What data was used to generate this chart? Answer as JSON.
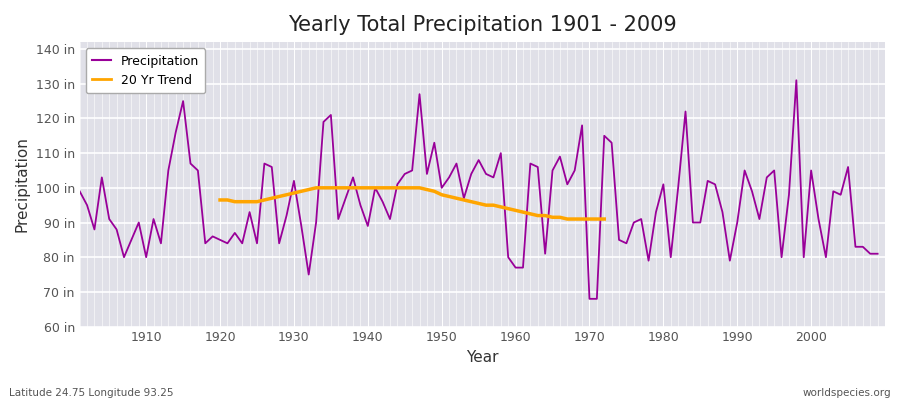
{
  "title": "Yearly Total Precipitation 1901 - 2009",
  "xlabel": "Year",
  "ylabel": "Precipitation",
  "subtitle": "Latitude 24.75 Longitude 93.25",
  "watermark": "worldspecies.org",
  "bg_color": "#ffffff",
  "plot_bg_color": "#e0e0e8",
  "precip_color": "#990099",
  "trend_color": "#FFA500",
  "ylim": [
    60,
    142
  ],
  "yticks": [
    60,
    70,
    80,
    90,
    100,
    110,
    120,
    130,
    140
  ],
  "ytick_labels": [
    "60 in",
    "70 in",
    "80 in",
    "90 in",
    "100 in",
    "110 in",
    "120 in",
    "130 in",
    "140 in"
  ],
  "xlim": [
    1901,
    2010
  ],
  "xticks": [
    1910,
    1920,
    1930,
    1940,
    1950,
    1960,
    1970,
    1980,
    1990,
    2000
  ],
  "years": [
    1901,
    1902,
    1903,
    1904,
    1905,
    1906,
    1907,
    1908,
    1909,
    1910,
    1911,
    1912,
    1913,
    1914,
    1915,
    1916,
    1917,
    1918,
    1919,
    1920,
    1921,
    1922,
    1923,
    1924,
    1925,
    1926,
    1927,
    1928,
    1929,
    1930,
    1931,
    1932,
    1933,
    1934,
    1935,
    1936,
    1937,
    1938,
    1939,
    1940,
    1941,
    1942,
    1943,
    1944,
    1945,
    1946,
    1947,
    1948,
    1949,
    1950,
    1951,
    1952,
    1953,
    1954,
    1955,
    1956,
    1957,
    1958,
    1959,
    1960,
    1961,
    1962,
    1963,
    1964,
    1965,
    1966,
    1967,
    1968,
    1969,
    1970,
    1971,
    1972,
    1973,
    1974,
    1975,
    1976,
    1977,
    1978,
    1979,
    1980,
    1981,
    1982,
    1983,
    1984,
    1985,
    1986,
    1987,
    1988,
    1989,
    1990,
    1991,
    1992,
    1993,
    1994,
    1995,
    1996,
    1997,
    1998,
    1999,
    2000,
    2001,
    2002,
    2003,
    2004,
    2005,
    2006,
    2007,
    2008,
    2009
  ],
  "precip": [
    99,
    95,
    88,
    103,
    91,
    88,
    80,
    85,
    90,
    80,
    91,
    84,
    105,
    116,
    125,
    107,
    105,
    84,
    86,
    85,
    84,
    87,
    84,
    93,
    84,
    107,
    106,
    84,
    92,
    102,
    89,
    75,
    90,
    119,
    121,
    91,
    97,
    103,
    95,
    89,
    100,
    96,
    91,
    101,
    104,
    105,
    127,
    104,
    113,
    100,
    103,
    107,
    97,
    104,
    108,
    104,
    103,
    110,
    80,
    77,
    77,
    107,
    106,
    81,
    105,
    109,
    101,
    105,
    118,
    68,
    68,
    115,
    113,
    85,
    84,
    90,
    91,
    79,
    93,
    101,
    80,
    100,
    122,
    90,
    90,
    102,
    101,
    93,
    79,
    90,
    105,
    99,
    91,
    103,
    105,
    80,
    98,
    131,
    80,
    105,
    91,
    80,
    99,
    98,
    106,
    83,
    83,
    81,
    81
  ],
  "trend_years": [
    1920,
    1921,
    1922,
    1923,
    1924,
    1925,
    1926,
    1927,
    1928,
    1929,
    1930,
    1931,
    1932,
    1933,
    1934,
    1935,
    1936,
    1937,
    1938,
    1939,
    1940,
    1941,
    1942,
    1943,
    1944,
    1945,
    1946,
    1947,
    1948,
    1949,
    1950,
    1951,
    1952,
    1953,
    1954,
    1955,
    1956,
    1957,
    1958,
    1959,
    1960,
    1961,
    1962,
    1963,
    1964,
    1965,
    1966,
    1967,
    1968,
    1969,
    1970,
    1971,
    1972
  ],
  "trend_values": [
    96.5,
    96.5,
    96.0,
    96.0,
    96.0,
    96.0,
    96.5,
    97.0,
    97.5,
    98.0,
    98.5,
    99.0,
    99.5,
    100.0,
    100.0,
    100.0,
    100.0,
    100.0,
    100.0,
    100.0,
    100.0,
    100.0,
    100.0,
    100.0,
    100.0,
    100.0,
    100.0,
    100.0,
    99.5,
    99.0,
    98.0,
    97.5,
    97.0,
    96.5,
    96.0,
    95.5,
    95.0,
    95.0,
    94.5,
    94.0,
    93.5,
    93.0,
    92.5,
    92.0,
    92.0,
    91.5,
    91.5,
    91.0,
    91.0,
    91.0,
    91.0,
    91.0,
    91.0
  ]
}
